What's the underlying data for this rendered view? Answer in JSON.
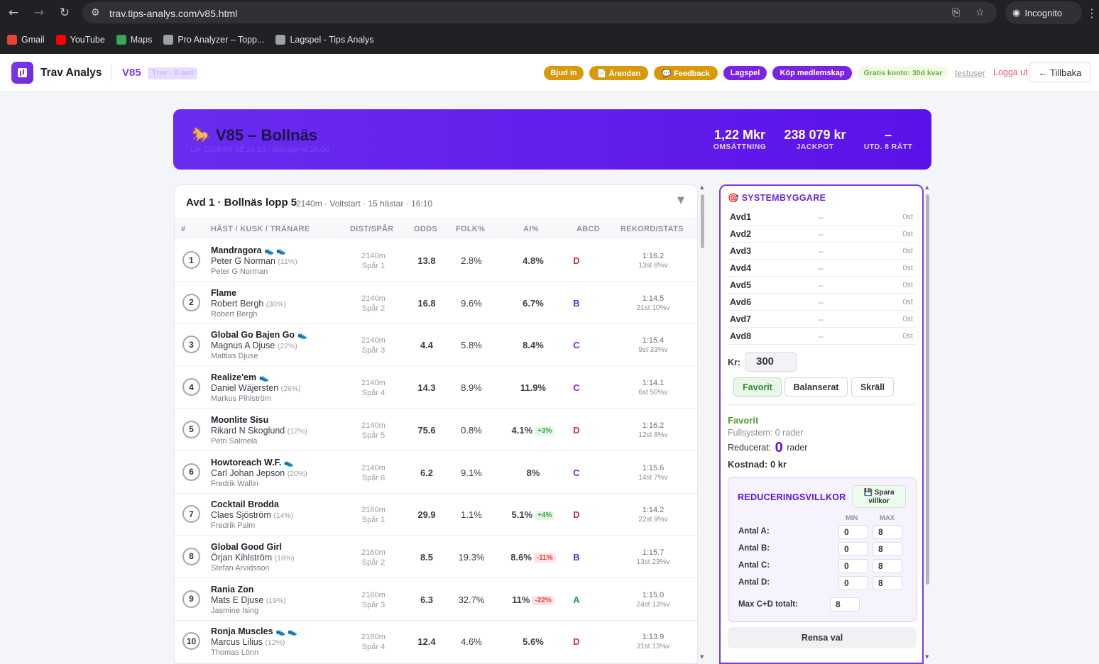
{
  "browser": {
    "url": "trav.tips-analys.com/v85.html",
    "profile": "Incognito",
    "bookmarks": [
      {
        "label": "Gmail",
        "color": "#ea4335"
      },
      {
        "label": "YouTube",
        "color": "#ff0000"
      },
      {
        "label": "Maps",
        "color": "#34a853"
      },
      {
        "label": "Pro Analyzer – Topp...",
        "color": "#9aa0a6"
      },
      {
        "label": "Lagspel - Tips Analys",
        "color": "#9aa0a6"
      }
    ]
  },
  "header": {
    "app_title": "Trav Analys",
    "game_code": "V85",
    "game_sub": "Trav · 8 avd",
    "buttons": {
      "invite": "Bjud in",
      "cases": "📄 Ärenden",
      "feedback": "💬 Feedback",
      "team": "Lagspel",
      "buy": "Köp medlemskap"
    },
    "free_account": "Gratis konto: 30d kvar",
    "username": "testuser",
    "logout": "Logga ut",
    "back": "← Tillbaka"
  },
  "banner": {
    "icon": "🐎",
    "title": "V85 – Bollnäs",
    "meta": "Lör 2026-04-18 16:10 · Stänger kl 16:00",
    "turnover_value": "1,22 Mkr",
    "turnover_label": "OMSÄTTNING",
    "jackpot_value": "238 079 kr",
    "jackpot_label": "JACKPOT",
    "payout_value": "–",
    "payout_label": "UTD. 8 RÄTT"
  },
  "race": {
    "name": "Avd 1 · Bollnäs lopp 5",
    "meta": "2140m · Voltstart · 15 hästar · 16:10",
    "collapse_icon": "▼",
    "columns": {
      "num": "#",
      "horse": "HÄST / KUSK / TRÄNARE",
      "dist": "DIST/SPÅR",
      "odds": "ODDS",
      "folk": "FOLK%",
      "ai": "AI%",
      "abcd": "ABCD",
      "record": "REKORD/STATS"
    },
    "rows": [
      {
        "num": "1",
        "horse": "Mandragora",
        "icons": "👟 👟",
        "driver": "Peter G Norman",
        "driver_pct": "(11%)",
        "trainer": "Peter G Norman",
        "dist": "2140m",
        "track": "Spår 1",
        "odds": "13.8",
        "folk": "2.8%",
        "ai": "4.8%",
        "delta": "",
        "delta_type": "",
        "abcd": "D",
        "record": "1:16.2",
        "stats": "13st 8%v"
      },
      {
        "num": "2",
        "horse": "Flame",
        "icons": "",
        "driver": "Robert Bergh",
        "driver_pct": "(30%)",
        "trainer": "Robert Bergh",
        "dist": "2140m",
        "track": "Spår 2",
        "odds": "16.8",
        "folk": "9.6%",
        "ai": "6.7%",
        "delta": "",
        "delta_type": "",
        "abcd": "B",
        "record": "1:14.5",
        "stats": "21st 10%v"
      },
      {
        "num": "3",
        "horse": "Global Go Bajen Go",
        "icons": "👟",
        "driver": "Magnus A Djuse",
        "driver_pct": "(22%)",
        "trainer": "Mattias Djuse",
        "dist": "2140m",
        "track": "Spår 3",
        "odds": "4.4",
        "folk": "5.8%",
        "ai": "8.4%",
        "delta": "",
        "delta_type": "",
        "abcd": "C",
        "record": "1:15.4",
        "stats": "9st 33%v"
      },
      {
        "num": "4",
        "horse": "Realize'em",
        "icons": "👟",
        "driver": "Daniel Wäjersten",
        "driver_pct": "(26%)",
        "trainer": "Markus Pihlström",
        "dist": "2140m",
        "track": "Spår 4",
        "odds": "14.3",
        "folk": "8.9%",
        "ai": "11.9%",
        "delta": "",
        "delta_type": "",
        "abcd": "C",
        "record": "1:14.1",
        "stats": "6st 50%v"
      },
      {
        "num": "5",
        "horse": "Moonlite Sisu",
        "icons": "",
        "driver": "Rikard N Skoglund",
        "driver_pct": "(12%)",
        "trainer": "Petri Salmela",
        "dist": "2140m",
        "track": "Spår 5",
        "odds": "75.6",
        "folk": "0.8%",
        "ai": "4.1%",
        "delta": "+3%",
        "delta_type": "pos",
        "abcd": "D",
        "record": "1:16.2",
        "stats": "12st 8%v"
      },
      {
        "num": "6",
        "horse": "Howtoreach W.F.",
        "icons": "👟",
        "driver": "Carl Johan Jepson",
        "driver_pct": "(20%)",
        "trainer": "Fredrik Wallin",
        "dist": "2140m",
        "track": "Spår 6",
        "odds": "6.2",
        "folk": "9.1%",
        "ai": "8%",
        "delta": "",
        "delta_type": "",
        "abcd": "C",
        "record": "1:15.6",
        "stats": "14st 7%v"
      },
      {
        "num": "7",
        "horse": "Cocktail Brodda",
        "icons": "",
        "driver": "Claes Sjöström",
        "driver_pct": "(14%)",
        "trainer": "Fredrik Palm",
        "dist": "2160m",
        "track": "Spår 1",
        "odds": "29.9",
        "folk": "1.1%",
        "ai": "5.1%",
        "delta": "+4%",
        "delta_type": "pos",
        "abcd": "D",
        "record": "1:14.2",
        "stats": "22st 9%v"
      },
      {
        "num": "8",
        "horse": "Global Good Girl",
        "icons": "",
        "driver": "Örjan Kihlström",
        "driver_pct": "(16%)",
        "trainer": "Stefan Arvidsson",
        "dist": "2160m",
        "track": "Spår 2",
        "odds": "8.5",
        "folk": "19.3%",
        "ai": "8.6%",
        "delta": "-11%",
        "delta_type": "neg",
        "abcd": "B",
        "record": "1:15.7",
        "stats": "13st 23%v"
      },
      {
        "num": "9",
        "horse": "Rania Zon",
        "icons": "",
        "driver": "Mats E Djuse",
        "driver_pct": "(19%)",
        "trainer": "Jasmine Ising",
        "dist": "2160m",
        "track": "Spår 3",
        "odds": "6.3",
        "folk": "32.7%",
        "ai": "11%",
        "delta": "-22%",
        "delta_type": "neg",
        "abcd": "A",
        "record": "1:15.0",
        "stats": "24st 13%v"
      },
      {
        "num": "10",
        "horse": "Ronja Muscles",
        "icons": "👟 👟",
        "driver": "Marcus Lilius",
        "driver_pct": "(12%)",
        "trainer": "Thomas Lönn",
        "dist": "2160m",
        "track": "Spår 4",
        "odds": "12.4",
        "folk": "4.6%",
        "ai": "5.6%",
        "delta": "",
        "delta_type": "",
        "abcd": "D",
        "record": "1:13.9",
        "stats": "31st 13%v"
      }
    ]
  },
  "abcd_colors": {
    "A": "#22a04a",
    "B": "#5b2ee0",
    "C": "#8a1fe0",
    "D": "#d32f2f"
  },
  "system": {
    "icon": "🎯",
    "title": "SYSTEMBYGGARE",
    "avds": [
      {
        "label": "Avd1",
        "value": "–",
        "count": "0st"
      },
      {
        "label": "Avd2",
        "value": "–",
        "count": "0st"
      },
      {
        "label": "Avd3",
        "value": "–",
        "count": "0st"
      },
      {
        "label": "Avd4",
        "value": "–",
        "count": "0st"
      },
      {
        "label": "Avd5",
        "value": "–",
        "count": "0st"
      },
      {
        "label": "Avd6",
        "value": "–",
        "count": "0st"
      },
      {
        "label": "Avd7",
        "value": "–",
        "count": "0st"
      },
      {
        "label": "Avd8",
        "value": "–",
        "count": "0st"
      }
    ],
    "kr_label": "Kr:",
    "kr_value": "300",
    "modes": [
      "Favorit",
      "Balanserat",
      "Skräll"
    ],
    "active_mode": "Favorit",
    "summary_title": "Favorit",
    "fullsystem": "Fullsystem: 0 rader",
    "reduced_label": "Reducerat:",
    "reduced_value": "0",
    "reduced_unit": "rader",
    "cost": "Kostnad: 0 kr",
    "reduction": {
      "title": "REDUCERINGSVILLKOR",
      "save_icon": "💾",
      "save_label": "Spara villkor",
      "min_label": "MIN",
      "max_label": "MAX",
      "rows": [
        {
          "label": "Antal A:",
          "min": "0",
          "max": "8"
        },
        {
          "label": "Antal B:",
          "min": "0",
          "max": "8"
        },
        {
          "label": "Antal C:",
          "min": "0",
          "max": "8"
        },
        {
          "label": "Antal D:",
          "min": "0",
          "max": "8"
        }
      ],
      "max_cd_label": "Max C+D totalt:",
      "max_cd_value": "8"
    },
    "clear": "Rensa val"
  }
}
